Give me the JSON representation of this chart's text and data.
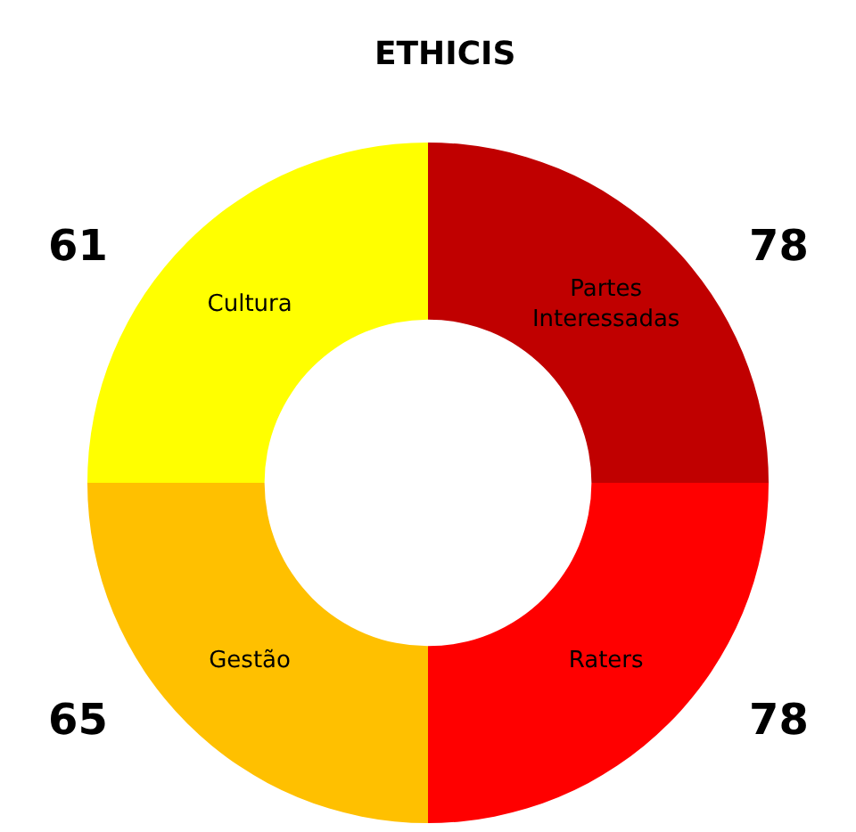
{
  "chart_data": {
    "type": "donut",
    "title": "ETHICIS",
    "categories": [
      "Partes\nInteressadas",
      "Raters",
      "Gestão",
      "Cultura"
    ],
    "values": [
      25,
      25,
      25,
      25
    ],
    "annotations": [
      "78",
      "78",
      "65",
      "61"
    ],
    "colors": [
      "#c00000",
      "#ff0000",
      "#ffc000",
      "#ffff00"
    ],
    "legend": false
  }
}
